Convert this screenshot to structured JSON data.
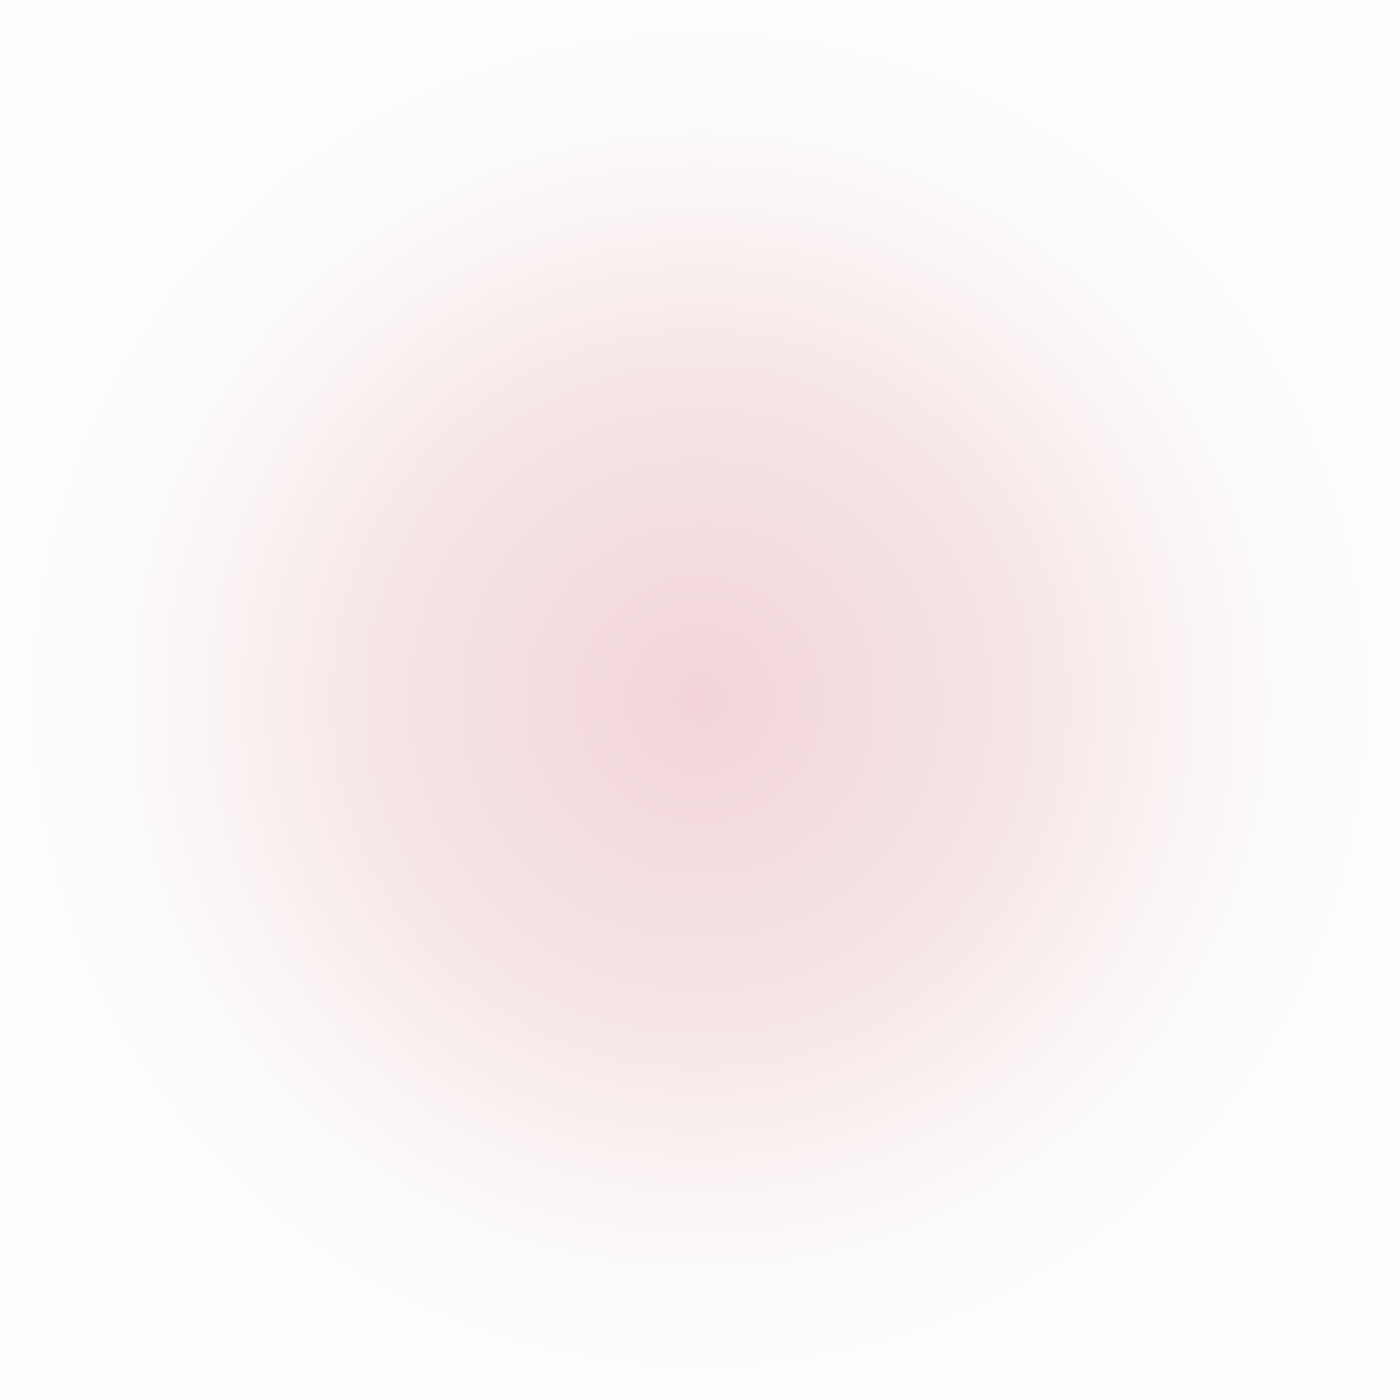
{
  "background": {
    "type": "radial-gradient",
    "center_color": "#f2d4d8",
    "mid_color": "#f6e6e7",
    "edge_color": "#fdfdfd"
  }
}
